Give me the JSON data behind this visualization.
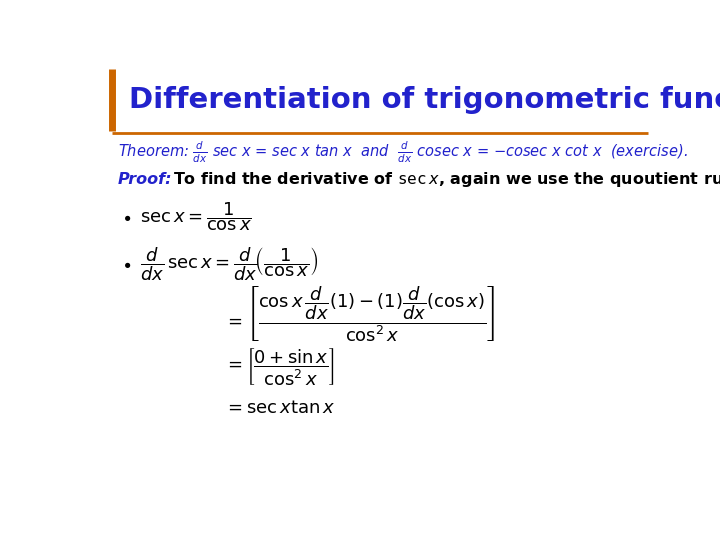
{
  "title": "Differentiation of trigonometric functions",
  "title_color": "#2222CC",
  "title_fontsize": 21,
  "bar_color": "#CC6600",
  "background_color": "#FFFFFF",
  "theorem_color": "#2222CC",
  "proof_color": "#2222CC",
  "math_color": "#000000"
}
